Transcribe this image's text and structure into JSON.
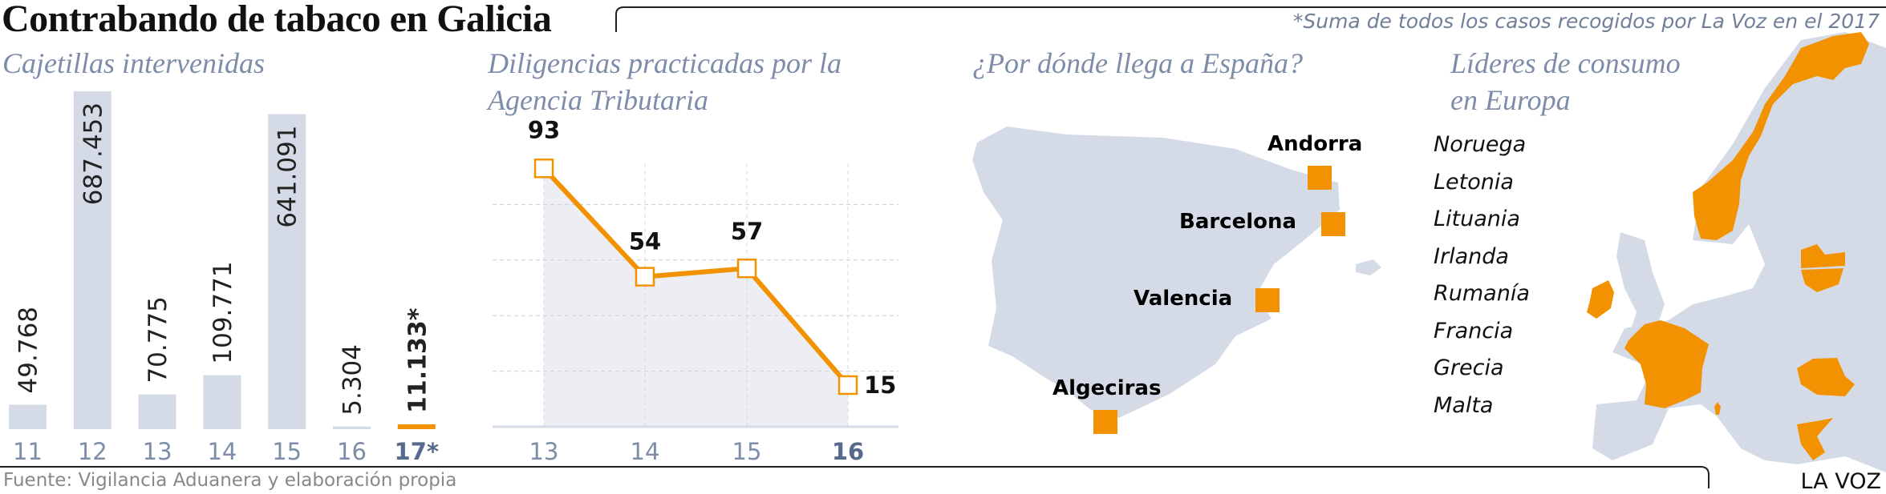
{
  "title": "Contrabando de tabaco en Galicia",
  "note": "*Suma de todos los casos recogidos por La Voz en el 2017",
  "footer": {
    "source": "Fuente: Vigilancia Aduanera y elaboración propia",
    "brand": "LA VOZ"
  },
  "colors": {
    "bar": "#d5dbe6",
    "accent": "#f39200",
    "subtitle": "#7d8ca8",
    "area": "#eceef3",
    "map": "#d5dbe6"
  },
  "chart_data": [
    {
      "type": "bar",
      "title": "Cajetillas intervenidas",
      "categories": [
        "11",
        "12",
        "13",
        "14",
        "15",
        "16",
        "17*"
      ],
      "values": [
        49768,
        687453,
        70775,
        109771,
        641091,
        5304,
        11133
      ],
      "value_labels": [
        "49.768",
        "687.453",
        "70.775",
        "109.771",
        "641.091",
        "5.304",
        "11.133*"
      ],
      "highlight": "17*",
      "ylim": [
        0,
        687453
      ]
    },
    {
      "type": "line",
      "title_line1": "Diligencias practicadas por la",
      "title_line2": "Agencia Tributaria",
      "categories": [
        "13",
        "14",
        "15",
        "16"
      ],
      "values": [
        93,
        54,
        57,
        15
      ],
      "value_labels": [
        "93",
        "54",
        "57",
        "15"
      ],
      "highlight": "16",
      "ylim": [
        0,
        100
      ],
      "grid": [
        20,
        40,
        60,
        80
      ]
    }
  ],
  "spain_map": {
    "title": "¿Por dónde llega a España?",
    "cities": [
      "Andorra",
      "Barcelona",
      "Valencia",
      "Algeciras"
    ]
  },
  "europe_map": {
    "title_line1": "Líderes de consumo",
    "title_line2": "en Europa",
    "countries": [
      "Noruega",
      "Letonia",
      "Lituania",
      "Irlanda",
      "Rumanía",
      "Francia",
      "Grecia",
      "Malta"
    ]
  }
}
